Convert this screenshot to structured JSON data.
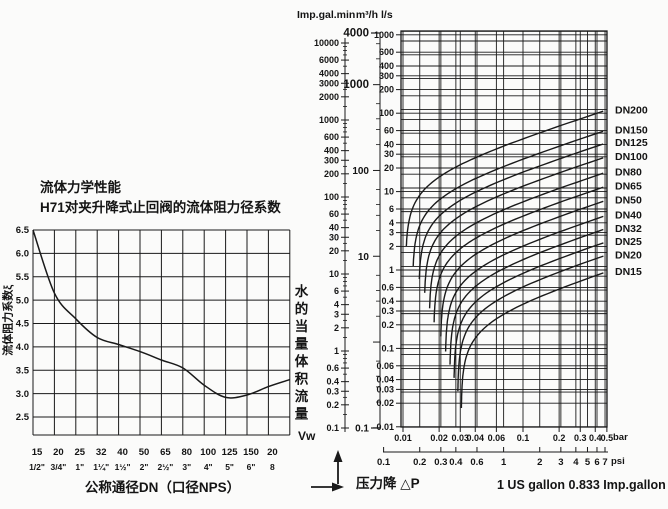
{
  "page": {
    "background": "#fbfbfa",
    "ink": "#1a1a1a"
  },
  "chart_data": [
    {
      "type": "line",
      "title": "流体力学性能",
      "subtitle": "H71对夹升降式止回阀的流体阻力径系数",
      "ylabel": "流体阻力系数ξ",
      "xlabel": "公称通径DN（口径NPS）",
      "ylim": [
        2.5,
        6.5
      ],
      "y_tick_labels": [
        "6.5",
        "6.0",
        "5.5",
        "5.0",
        "4.5",
        "4.0",
        "3.5",
        "3.0",
        "2.5"
      ],
      "x_tick_labels_dn": [
        "15",
        "20",
        "25",
        "32",
        "40",
        "50",
        "65",
        "80",
        "100",
        "125",
        "150",
        "20"
      ],
      "x_tick_labels_nps": [
        "1/2\"",
        "3/4\"",
        "1\"",
        "1¼\"",
        "1½\"",
        "2\"",
        "2½\"",
        "3\"",
        "4\"",
        "5\"",
        "6\"",
        "8"
      ],
      "values": [
        6.5,
        5.15,
        4.6,
        4.2,
        4.05,
        3.9,
        3.72,
        3.55,
        3.18,
        2.92,
        2.97,
        3.15
      ],
      "edge_value": 3.3,
      "grid": true
    },
    {
      "type": "line",
      "scale_note": "log-log nomograph: water equivalent volumetric flow vs pressure drop",
      "xlim_bar": [
        0.0096,
        0.53
      ],
      "ylim_ls": [
        0.01,
        1000
      ],
      "x_axis_bar": {
        "unit": "bar",
        "tick_labels": [
          "0.01",
          "0.02",
          "0.03",
          "0.04",
          "0.06",
          "0.1",
          "0.2",
          "0.3",
          "0.4",
          "0.5"
        ]
      },
      "x_axis_psi": {
        "unit": "psi",
        "bar_per_psi": 0.06895,
        "tick_labels": [
          "0.1",
          "0.2",
          "0.3",
          "0.4",
          "0.6",
          "1",
          "2",
          "3",
          "4",
          "5",
          "6",
          "7"
        ]
      },
      "y_axis_ls": {
        "unit": "l/s",
        "tick_labels": [
          "1000",
          "600",
          "400",
          "300",
          "200",
          "100",
          "60",
          "40",
          "30",
          "20",
          "10",
          "6",
          "4",
          "3",
          "2",
          "1",
          "0.6",
          "0.4",
          "0.3",
          "0.2",
          "0.1",
          "0.06",
          "0.04",
          "0.03",
          "0.02",
          "0.01"
        ]
      },
      "scale_imp": {
        "header": "Imp.gal.min",
        "tick_labels": [
          "10000",
          "6000",
          "4000",
          "3000",
          "2000",
          "1000",
          "600",
          "400",
          "300",
          "200",
          "100",
          "60",
          "40",
          "30",
          "20",
          "10",
          "6",
          "4",
          "3",
          "2",
          "1",
          "0.6",
          "0.4",
          "0.3",
          "0.2",
          "0.1"
        ]
      },
      "scale_m3h": {
        "header": "m³/h",
        "tick_labels": [
          "4000",
          "1000",
          "100",
          "10",
          "0.1"
        ]
      },
      "series": [
        {
          "label": "DN200",
          "flow_ls_at_0_5bar": 110,
          "crack_bar": 0.0105
        },
        {
          "label": "DN150",
          "flow_ls_at_0_5bar": 61,
          "crack_bar": 0.012
        },
        {
          "label": "DN125",
          "flow_ls_at_0_5bar": 42,
          "crack_bar": 0.0135
        },
        {
          "label": "DN100",
          "flow_ls_at_0_5bar": 28,
          "crack_bar": 0.015
        },
        {
          "label": "DN80",
          "flow_ls_at_0_5bar": 17.8,
          "crack_bar": 0.0165
        },
        {
          "label": "DN65",
          "flow_ls_at_0_5bar": 11.8,
          "crack_bar": 0.018
        },
        {
          "label": "DN50",
          "flow_ls_at_0_5bar": 7.8,
          "crack_bar": 0.0205
        },
        {
          "label": "DN40",
          "flow_ls_at_0_5bar": 5.0,
          "crack_bar": 0.0225
        },
        {
          "label": "DN32",
          "flow_ls_at_0_5bar": 3.4,
          "crack_bar": 0.0245
        },
        {
          "label": "DN25",
          "flow_ls_at_0_5bar": 2.3,
          "crack_bar": 0.0265
        },
        {
          "label": "DN20",
          "flow_ls_at_0_5bar": 1.56,
          "crack_bar": 0.0285
        },
        {
          "label": "DN15",
          "flow_ls_at_0_5bar": 0.95,
          "crack_bar": 0.0305
        }
      ],
      "flow_axis_label": "水的当量体积流量",
      "flow_axis_symbol": "Vw",
      "xlabel": "压力降 △P",
      "note": "1 US gallon 0.833 Imp.gallon"
    }
  ]
}
